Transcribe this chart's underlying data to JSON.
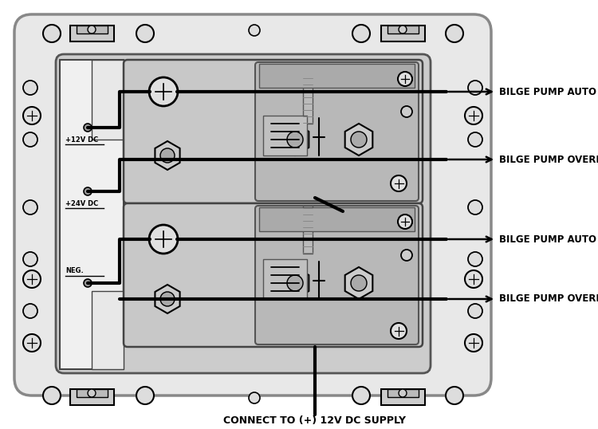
{
  "bg_color": "#ffffff",
  "panel_outer_fill": "#e8e8e8",
  "panel_outer_edge": "#888888",
  "panel_inner_fill": "#d8d8d8",
  "panel_inner_edge": "#666666",
  "board_fill": "#cccccc",
  "board_edge": "#555555",
  "module_fill": "#c8c8c8",
  "module_edge": "#444444",
  "sub_fill": "#b8b8b8",
  "sub_edge": "#555555",
  "terminal_fill": "#f5f5f5",
  "terminal_edge": "#333333",
  "wire_color": "#000000",
  "line_color": "#000000",
  "screw_fill": "#e0e0e0",
  "hex_fill": "#cccccc",
  "labels": {
    "bilge_auto_1": "BILGE PUMP AUTO / FLOAT SWITCH",
    "bilge_override_1": "BILGE PUMP OVERRIDE",
    "bilge_auto_2": "BILGE PUMP AUTO / FLOAT SWITCH",
    "bilge_override_2": "BILGE PUMP OVERRIDE",
    "connect": "CONNECT TO (+) 12V DC SUPPLY",
    "pos12v": "+12V DC",
    "pos24v": "+24V DC",
    "neg": "NEG."
  },
  "figsize": [
    7.5,
    5.38
  ],
  "dpi": 100
}
